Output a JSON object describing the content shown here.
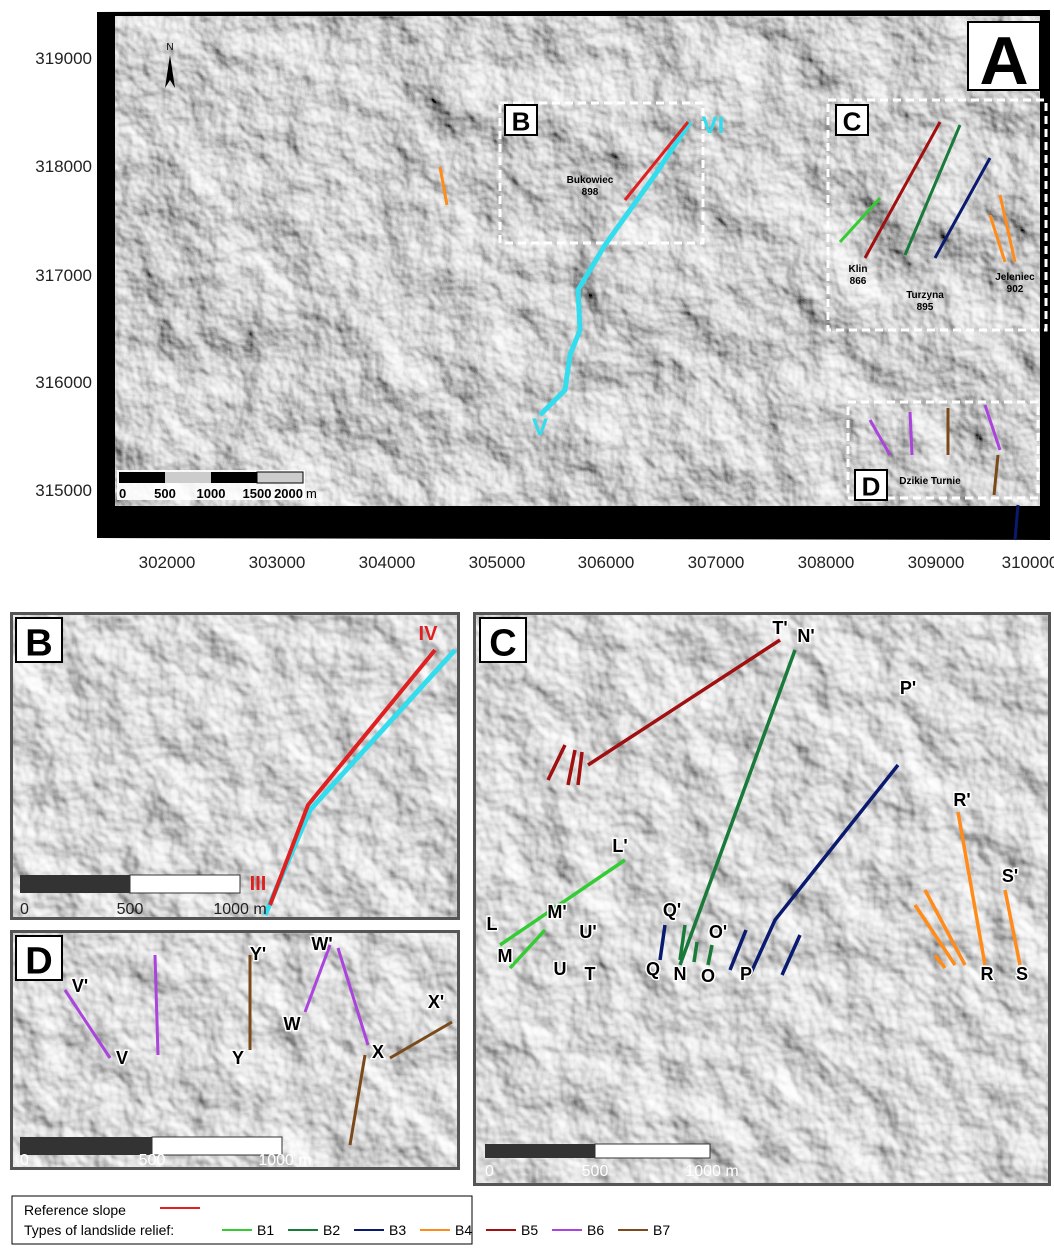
{
  "panel_a": {
    "label": "A",
    "north": "N",
    "y_ticks": [
      "319000",
      "318000",
      "317000",
      "316000",
      "315000"
    ],
    "x_ticks": [
      "302000",
      "303000",
      "304000",
      "305000",
      "306000",
      "307000",
      "308000",
      "309000",
      "310000"
    ],
    "insets": [
      "B",
      "C",
      "D"
    ],
    "places": [
      {
        "name": "Bukowiec",
        "height": "898"
      },
      {
        "name": "Klin",
        "height": "866"
      },
      {
        "name": "Turzyna",
        "height": "895"
      },
      {
        "name": "Jeleniec",
        "height": "902"
      },
      {
        "name": "Dzikie Turnie"
      }
    ],
    "profiles": [
      "VI",
      "V"
    ],
    "scale": [
      "0",
      "500",
      "1000",
      "1500",
      "2000",
      "m"
    ]
  },
  "panel_b": {
    "label": "B",
    "profiles": [
      "IV",
      "III"
    ],
    "scale": [
      "0",
      "500",
      "1000 m"
    ]
  },
  "panel_c": {
    "label": "C",
    "profiles": [
      "L'",
      "L",
      "M'",
      "M",
      "U'",
      "U",
      "T",
      "T'",
      "N'",
      "Q'",
      "Q",
      "N",
      "O'",
      "O",
      "P",
      "P'",
      "R'",
      "R",
      "S'",
      "S"
    ],
    "scale": [
      "0",
      "500",
      "1000 m"
    ]
  },
  "panel_d": {
    "label": "D",
    "profiles": [
      "V'",
      "V",
      "Y'",
      "Y",
      "W'",
      "W",
      "X",
      "X'"
    ],
    "scale": [
      "0",
      "500",
      "1000 m"
    ]
  },
  "legend": {
    "reference": {
      "text": "Reference slope",
      "color": "#e02020"
    },
    "types_title": "Types of landslide relief:",
    "types": [
      {
        "name": "B1",
        "color": "#33cc33"
      },
      {
        "name": "B2",
        "color": "#1a7a3a"
      },
      {
        "name": "B3",
        "color": "#0a1a6e"
      },
      {
        "name": "B4",
        "color": "#ff8c1a"
      },
      {
        "name": "B5",
        "color": "#a01010"
      },
      {
        "name": "B6",
        "color": "#aa44dd"
      },
      {
        "name": "B7",
        "color": "#7a4a1a"
      }
    ]
  }
}
